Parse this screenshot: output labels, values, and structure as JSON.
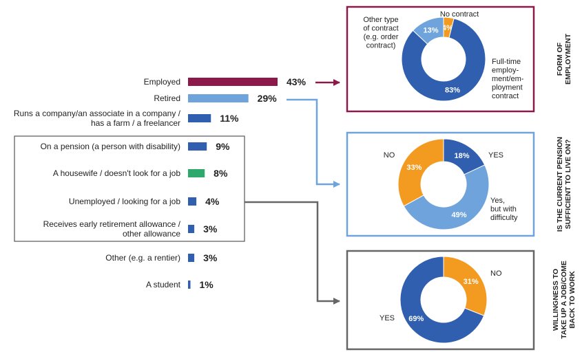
{
  "colors": {
    "employed": "#8b1a4a",
    "retired": "#6fa3dc",
    "dark_blue": "#2f5fae",
    "light_blue": "#6fa3dc",
    "green": "#2ea86b",
    "orange": "#f39a21",
    "gray": "#666666"
  },
  "chart_data": [
    {
      "type": "bar",
      "orientation": "horizontal",
      "categories": [
        "Employed",
        "Retired",
        "Runs a company/an associate in a company / has a farm / a freelancer",
        "On a pension (a person with disability)",
        "A housewife / doesn't look for a job",
        "Unemployed / looking for a job",
        "Receives early retirement allowance / other allowance",
        "Other (e.g. a rentier)",
        "A student"
      ],
      "label_lines": [
        [
          "Employed"
        ],
        [
          "Retired"
        ],
        [
          "Runs a company/an associate in a company /",
          "has a farm / a freelancer"
        ],
        [
          "On a pension (a person with disability)"
        ],
        [
          "A housewife / doesn't look for a job"
        ],
        [
          "Unemployed / looking for a job"
        ],
        [
          "Receives early retirement allowance /",
          "other allowance"
        ],
        [
          "Other (e.g. a rentier)"
        ],
        [
          "A student"
        ]
      ],
      "values": [
        43,
        29,
        11,
        9,
        8,
        4,
        3,
        3,
        1
      ],
      "value_labels": [
        "43%",
        "29%",
        "11%",
        "9%",
        "8%",
        "4%",
        "3%",
        "3%",
        "1%"
      ],
      "bar_colors": [
        "#8b1a4a",
        "#6fa3dc",
        "#2f5fae",
        "#2f5fae",
        "#2ea86b",
        "#2f5fae",
        "#2f5fae",
        "#2f5fae",
        "#2f5fae"
      ],
      "unit": "%"
    },
    {
      "type": "pie",
      "donut": true,
      "side_title": [
        "FORM OF",
        "EMPLOYMENT"
      ],
      "slices": [
        {
          "label": "Full-time employment contract",
          "label_lines": [
            "Full-time",
            "employ-",
            "ment/em-",
            "ployment",
            "contract"
          ],
          "value": 83,
          "value_label": "83%",
          "color": "#2f5fae"
        },
        {
          "label": "Other type of contract (e.g. order contract)",
          "label_lines": [
            "Other type",
            "of contract",
            "(e.g. order",
            "contract)"
          ],
          "value": 13,
          "value_label": "13%",
          "color": "#6fa3dc"
        },
        {
          "label": "No contract",
          "label_lines": [
            "No contract"
          ],
          "value": 4,
          "value_label": "4%",
          "color": "#f39a21"
        }
      ]
    },
    {
      "type": "pie",
      "donut": true,
      "side_title": [
        "IS THE CURRENT PENSION",
        "SUFFICIENT TO LIVE ON?"
      ],
      "slices": [
        {
          "label": "YES",
          "label_lines": [
            "YES"
          ],
          "value": 18,
          "value_label": "18%",
          "color": "#2f5fae"
        },
        {
          "label": "Yes, but with difficulty",
          "label_lines": [
            "Yes,",
            "but with",
            "difficulty"
          ],
          "value": 49,
          "value_label": "49%",
          "color": "#6fa3dc"
        },
        {
          "label": "NO",
          "label_lines": [
            "NO"
          ],
          "value": 33,
          "value_label": "33%",
          "color": "#f39a21"
        }
      ]
    },
    {
      "type": "pie",
      "donut": true,
      "side_title": [
        "WILLINGNESS TO",
        "TAKE UP A JOB/COME",
        "BACK TO WORK"
      ],
      "slices": [
        {
          "label": "NO",
          "label_lines": [
            "NO"
          ],
          "value": 31,
          "value_label": "31%",
          "color": "#f39a21"
        },
        {
          "label": "YES",
          "label_lines": [
            "YES"
          ],
          "value": 69,
          "value_label": "69%",
          "color": "#2f5fae"
        }
      ]
    }
  ]
}
